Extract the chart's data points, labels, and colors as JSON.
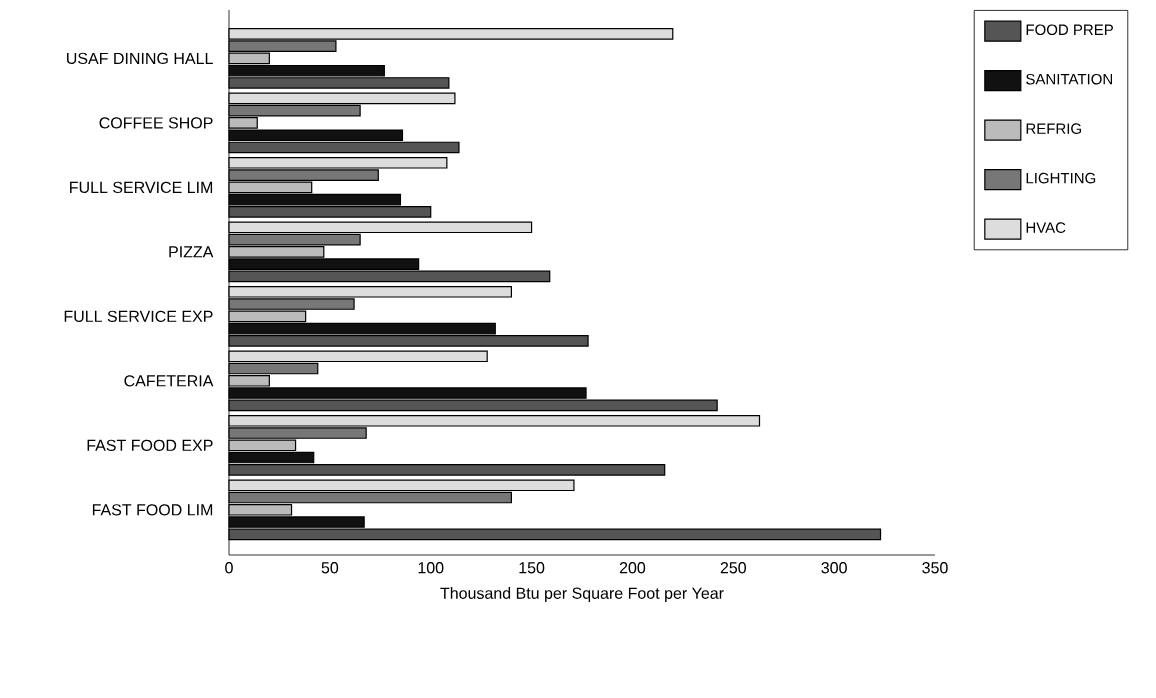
{
  "chart_data": {
    "type": "bar",
    "orientation": "horizontal",
    "xlabel": "Thousand Btu per Square Foot per Year",
    "categories": [
      "USAF DINING HALL",
      "COFFEE SHOP",
      "FULL SERVICE LIM",
      "PIZZA",
      "FULL SERVICE EXP",
      "CAFETERIA",
      "FAST FOOD EXP",
      "FAST FOOD LIM"
    ],
    "series": [
      {
        "name": "FOOD PREP",
        "color": "#555555",
        "values": [
          109,
          114,
          100,
          159,
          178,
          242,
          216,
          323
        ]
      },
      {
        "name": "SANITATION",
        "color": "#111111",
        "values": [
          77,
          86,
          85,
          94,
          132,
          177,
          42,
          67
        ]
      },
      {
        "name": "REFRIG",
        "color": "#bbbbbb",
        "values": [
          20,
          14,
          41,
          47,
          38,
          20,
          33,
          31
        ]
      },
      {
        "name": "LIGHTING",
        "color": "#777777",
        "values": [
          53,
          65,
          74,
          65,
          62,
          44,
          68,
          140
        ]
      },
      {
        "name": "HVAC",
        "color": "#dddddd",
        "values": [
          220,
          112,
          108,
          150,
          140,
          128,
          263,
          171
        ]
      }
    ],
    "xlim": [
      0,
      350
    ],
    "xticks": [
      0,
      50,
      100,
      150,
      200,
      250,
      300,
      350
    ],
    "legend": "top right"
  }
}
